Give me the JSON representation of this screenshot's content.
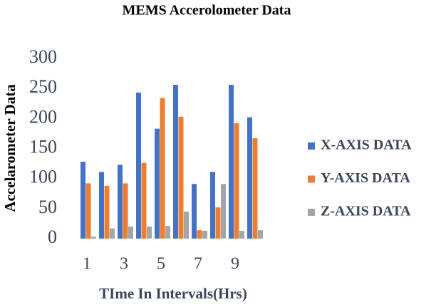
{
  "chart_data": {
    "type": "bar",
    "title": "MEMS Accerolometer Data",
    "x_label": "TIme In Intervals(Hrs)",
    "y_label": "Accelarometer Data",
    "categories": [
      "1",
      null,
      "3",
      null,
      "5",
      null,
      "7",
      null,
      "9",
      null
    ],
    "series": [
      {
        "name": "X-AXIS DATA",
        "color": "#4472c4",
        "values": [
          128,
          111,
          123,
          243,
          183,
          256,
          91,
          111,
          256,
          202
        ]
      },
      {
        "name": "Y-AXIS DATA",
        "color": "#ed7d31",
        "values": [
          92,
          88,
          92,
          126,
          234,
          203,
          14,
          52,
          192,
          167
        ]
      },
      {
        "name": "Z-AXIS DATA",
        "color": "#a5a5a5",
        "values": [
          3,
          17,
          20,
          20,
          21,
          45,
          13,
          91,
          13,
          14
        ]
      }
    ],
    "ylim": [
      0,
      300
    ],
    "yticks": [
      0,
      50,
      100,
      150,
      200,
      250,
      300
    ],
    "grid": false,
    "legend": "right"
  }
}
